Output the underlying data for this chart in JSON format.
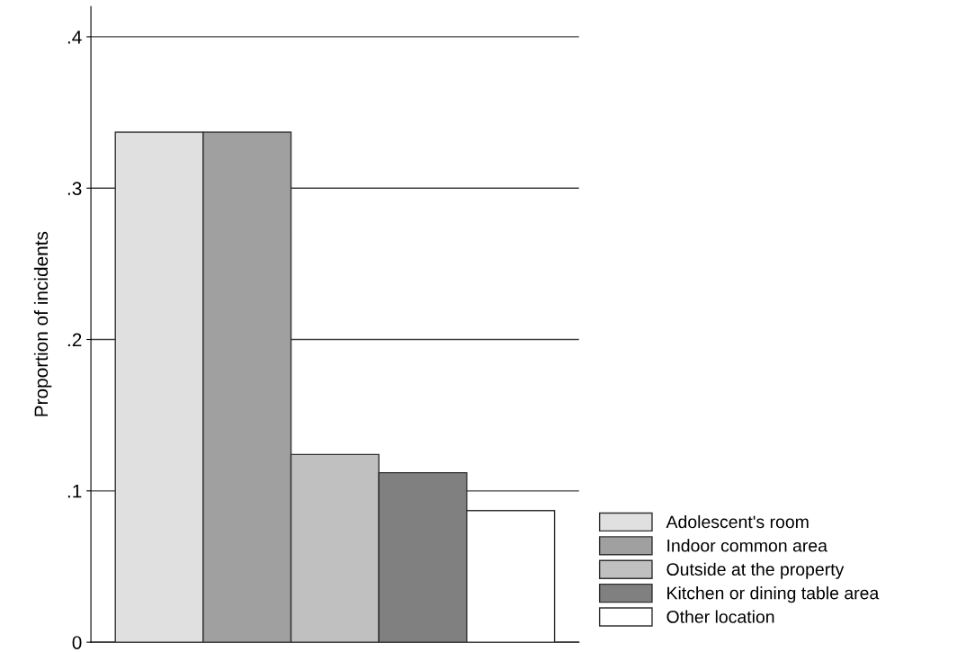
{
  "chart_data": {
    "type": "bar",
    "ylabel": "Proportion of incidents",
    "categories": [
      null
    ],
    "series": [
      {
        "name": "Adolescent's room",
        "color": "#e0e0e0",
        "values": [
          0.337
        ]
      },
      {
        "name": "Indoor common area",
        "color": "#a0a0a0",
        "values": [
          0.337
        ]
      },
      {
        "name": "Outside at the property",
        "color": "#c0c0c0",
        "values": [
          0.124
        ]
      },
      {
        "name": "Kitchen or dining table area",
        "color": "#808080",
        "values": [
          0.112
        ]
      },
      {
        "name": "Other location",
        "color": "#ffffff",
        "values": [
          0.087
        ]
      }
    ],
    "ylim": [
      0,
      0.42
    ],
    "yticks": [
      0,
      {
        "value": 0.1,
        "label": ".1"
      },
      {
        "value": 0.2,
        "label": ".2"
      },
      {
        "value": 0.3,
        "label": ".3"
      },
      {
        "value": 0.4,
        "label": ".4"
      }
    ],
    "grid": "y",
    "legend": "right"
  }
}
